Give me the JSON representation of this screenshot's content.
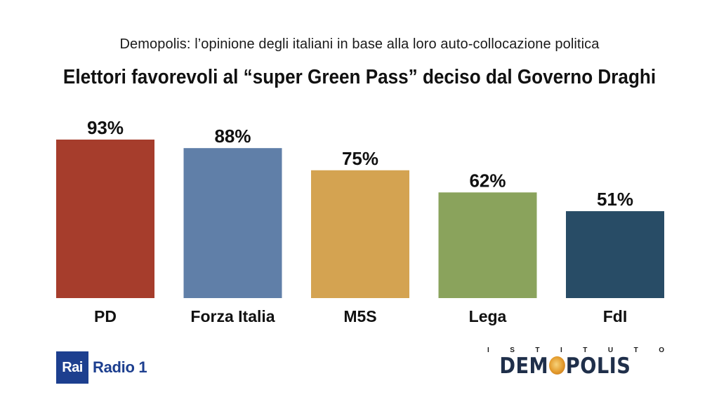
{
  "header": {
    "subtitle": "Demopolis: l’opinione degli italiani in base alla loro auto-collocazione politica",
    "title": "Elettori favorevoli al “super Green Pass” deciso dal Governo Draghi"
  },
  "chart_data": {
    "type": "bar",
    "title": "Elettori favorevoli al “super Green Pass” deciso dal Governo Draghi",
    "subtitle": "Demopolis: l’opinione degli italiani in base alla loro auto-collocazione politica",
    "categories": [
      "PD",
      "Forza Italia",
      "M5S",
      "Lega",
      "FdI"
    ],
    "values": [
      93,
      88,
      75,
      62,
      51
    ],
    "value_labels": [
      "93%",
      "88%",
      "75%",
      "62%",
      "51%"
    ],
    "colors": [
      "#a63d2c",
      "#607fa8",
      "#d4a351",
      "#8aa35c",
      "#284c66"
    ],
    "ylim": [
      0,
      100
    ],
    "grid": false,
    "legend": "none"
  },
  "footer": {
    "rai_box": "Rai",
    "rai_radio": "Radio 1",
    "demopolis_top": "ISTITUTO",
    "demopolis_word_left": "DEM",
    "demopolis_word_right": "POLIS",
    "rai_color": "#1d3f8f",
    "demopolis_color": "#1f2f4a"
  }
}
